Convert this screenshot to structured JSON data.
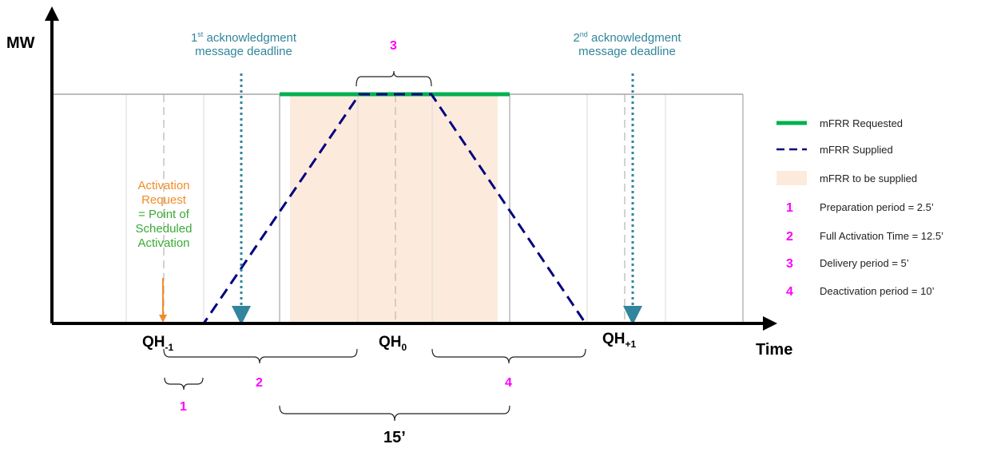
{
  "axes": {
    "y_label": "MW",
    "x_label": "Time"
  },
  "quarter_hours": [
    {
      "main": "QH",
      "sub": "-1"
    },
    {
      "main": "QH",
      "sub": "0"
    },
    {
      "main": "QH",
      "sub": "+1"
    }
  ],
  "annotations": {
    "ack1": {
      "sup": "st",
      "pre": "1",
      "line1": " acknowledgment",
      "line2": "message deadline"
    },
    "ack2": {
      "sup": "nd",
      "pre": "2",
      "line1": " acknowledgment",
      "line2": "message deadline"
    },
    "activation": {
      "line1": "Activation",
      "line2": "Request",
      "line3": "= Point of",
      "line4": "Scheduled",
      "line5": "Activation"
    },
    "duration_15": "15’"
  },
  "period_markers": {
    "p1": "1",
    "p2": "2",
    "p3": "3",
    "p4": "4"
  },
  "legend": [
    {
      "key": "requested",
      "label": "mFRR Requested"
    },
    {
      "key": "supplied",
      "label": "mFRR Supplied"
    },
    {
      "key": "to_be_supplied",
      "label": "mFRR to be supplied"
    },
    {
      "key": "n1",
      "num": "1",
      "label": "Preparation period = 2.5’"
    },
    {
      "key": "n2",
      "num": "2",
      "label": "Full Activation Time = 12.5’"
    },
    {
      "key": "n3",
      "num": "3",
      "label": "Delivery period = 5’"
    },
    {
      "key": "n4",
      "num": "4",
      "label": "Deactivation period = 10’"
    }
  ],
  "colors": {
    "requested": "#00B050",
    "supplied": "#000080",
    "to_be_supplied": "#FCEBDD",
    "teal": "#31859C",
    "orange": "#F28C28",
    "green_text": "#3AAA35",
    "magenta": "#FF00FF"
  }
}
